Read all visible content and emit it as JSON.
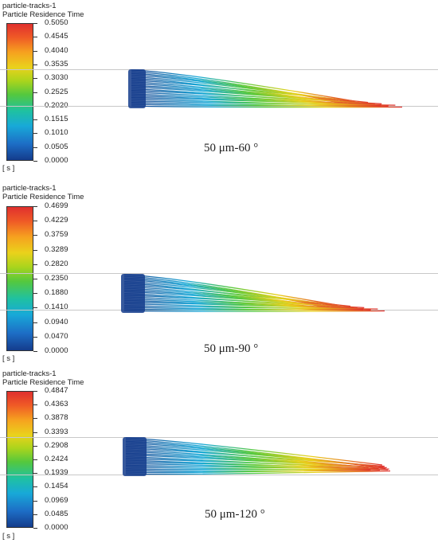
{
  "panels": [
    {
      "legend_title": "particle-tracks-1",
      "legend_subtitle": "Particle Residence Time",
      "ticks": [
        "0.5050",
        "0.4545",
        "0.4040",
        "0.3535",
        "0.3030",
        "0.2525",
        "0.2020",
        "0.1515",
        "0.1010",
        "0.0505",
        "0.0000"
      ],
      "unit": "[ s ]",
      "caption": "50 μm-60 °"
    },
    {
      "legend_title": "particle-tracks-1",
      "legend_subtitle": "Particle Residence Time",
      "ticks": [
        "0.4699",
        "0.4229",
        "0.3759",
        "0.3289",
        "0.2820",
        "0.2350",
        "0.1880",
        "0.1410",
        "0.0940",
        "0.0470",
        "0.0000"
      ],
      "unit": "[ s ]",
      "caption": "50 μm-90 °"
    },
    {
      "legend_title": "particle-tracks-1",
      "legend_subtitle": "Particle Residence Time",
      "ticks": [
        "0.4847",
        "0.4363",
        "0.3878",
        "0.3393",
        "0.2908",
        "0.2424",
        "0.1939",
        "0.1454",
        "0.0969",
        "0.0485",
        "0.0000"
      ],
      "unit": "[ s ]",
      "caption": "50 μm-120 °"
    }
  ],
  "colors": {
    "low": "#143c8c",
    "mid_low": "#18a9d8",
    "mid": "#54c83e",
    "mid_high": "#ead21b",
    "high": "#e0302e",
    "guide_line": "#c8c8c8"
  },
  "colormap": "jet"
}
